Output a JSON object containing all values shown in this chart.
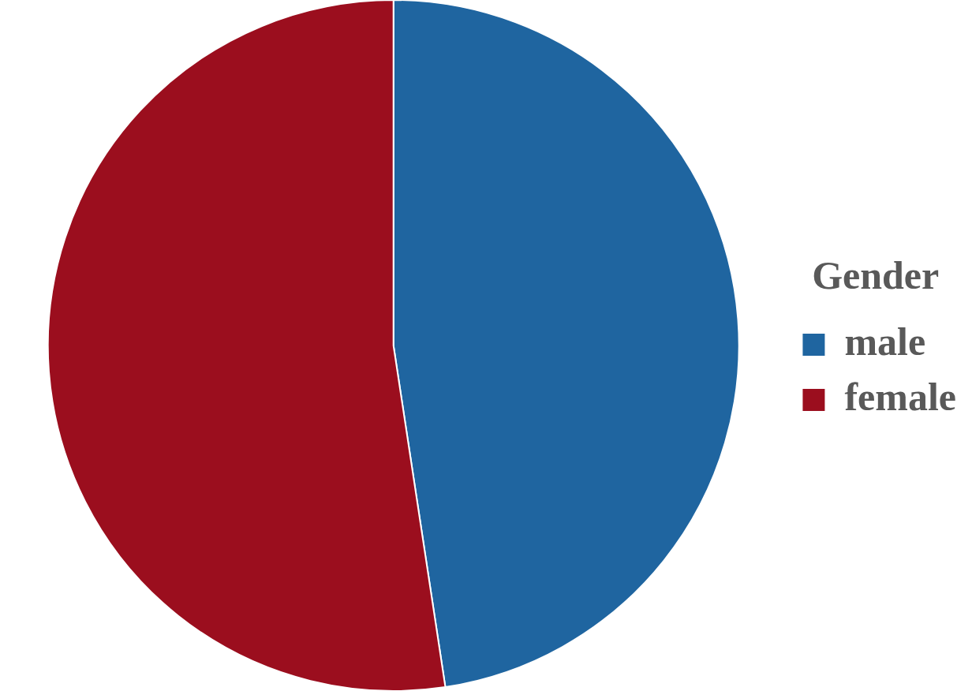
{
  "chart_data": {
    "type": "pie",
    "legend_title": "Gender",
    "legend": "right",
    "categories": [
      "male",
      "female"
    ],
    "values": [
      47.6,
      52.4
    ],
    "colors": [
      "#1f65a0",
      "#9b0e1e"
    ]
  }
}
